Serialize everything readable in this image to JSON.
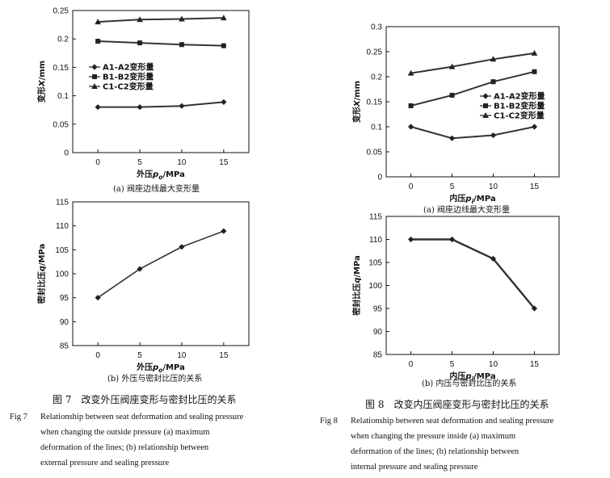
{
  "figure7": {
    "chart_a": {
      "type": "line",
      "xlabel": "外压p_o/MPa",
      "ylabel": "变形X/mm",
      "x": [
        0,
        5,
        10,
        15
      ],
      "xlim": [
        -3,
        18
      ],
      "ylim": [
        0,
        0.25
      ],
      "yticks": [
        "0",
        "0.05",
        "0.1",
        "0.15",
        "0.2",
        "0.25"
      ],
      "legend": "left-middle",
      "series": [
        {
          "name": "A1-A2变形量",
          "marker": "diamond",
          "values": [
            0.08,
            0.08,
            0.082,
            0.089
          ]
        },
        {
          "name": "B1-B2变形量",
          "marker": "square",
          "values": [
            0.196,
            0.193,
            0.19,
            0.188
          ]
        },
        {
          "name": "C1-C2变形量",
          "marker": "triangle",
          "values": [
            0.23,
            0.234,
            0.235,
            0.237
          ]
        }
      ],
      "caption": "(a) 阀座边线最大变形量"
    },
    "chart_b": {
      "type": "line",
      "xlabel": "外压p_o/MPa",
      "ylabel": "密封比压q/MPa",
      "x": [
        0,
        5,
        10,
        15
      ],
      "xlim": [
        -3,
        18
      ],
      "ylim": [
        85,
        115
      ],
      "yticks": [
        "85",
        "90",
        "95",
        "100",
        "105",
        "110",
        "115"
      ],
      "series": [
        {
          "marker": "diamond",
          "values": [
            95.0,
            101.0,
            105.6,
            108.9
          ]
        }
      ],
      "caption": "(b) 外压与密封比压的关系"
    },
    "title_cn": "图 7　改变外压阀座变形与密封比压的关系",
    "title_en_label": "Fig 7",
    "title_en_lines": [
      "Relationship between seat deformation and sealing pressure",
      "when changing the outside pressure (a) maximum",
      "deformation of the lines; (b) relationship between",
      "external pressure and sealing pressure"
    ]
  },
  "figure8": {
    "chart_a": {
      "type": "line",
      "xlabel": "内压p_i/MPa",
      "ylabel": "变形X/mm",
      "x": [
        0,
        5,
        10,
        15
      ],
      "xlim": [
        -3,
        18
      ],
      "ylim": [
        0,
        0.3
      ],
      "yticks": [
        "0",
        "0.05",
        "0.1",
        "0.15",
        "0.2",
        "0.25",
        "0.3"
      ],
      "legend": "right-middle",
      "series": [
        {
          "name": "A1-A2变形量",
          "marker": "diamond",
          "values": [
            0.1,
            0.077,
            0.083,
            0.1
          ]
        },
        {
          "name": "B1-B2变形量",
          "marker": "square",
          "values": [
            0.142,
            0.163,
            0.19,
            0.21
          ]
        },
        {
          "name": "C1-C2变形量",
          "marker": "triangle",
          "values": [
            0.207,
            0.22,
            0.235,
            0.247
          ]
        }
      ],
      "caption": "(a) 阀座边线最大变形量"
    },
    "chart_b": {
      "type": "line",
      "xlabel": "内压p_i/MPa",
      "ylabel": "密封比压q/MPa",
      "x": [
        0,
        5,
        10,
        15
      ],
      "xlim": [
        -3,
        18
      ],
      "ylim": [
        85,
        115
      ],
      "yticks": [
        "85",
        "90",
        "95",
        "100",
        "105",
        "110",
        "115"
      ],
      "series": [
        {
          "marker": "diamond",
          "values": [
            110.0,
            110.0,
            105.8,
            95.0
          ]
        }
      ],
      "caption": "(b) 内压与密封比压的关系"
    },
    "title_cn": "图 8　改变内压阀座变形与密封比压的关系",
    "title_en_label": "Fig 8",
    "title_en_lines": [
      "Relationship between seat deformation and sealing pressure",
      "when changing the pressure inside (a) maximum",
      "deformation of the lines; (b) relationship between",
      "internal pressure and sealing pressure"
    ]
  }
}
